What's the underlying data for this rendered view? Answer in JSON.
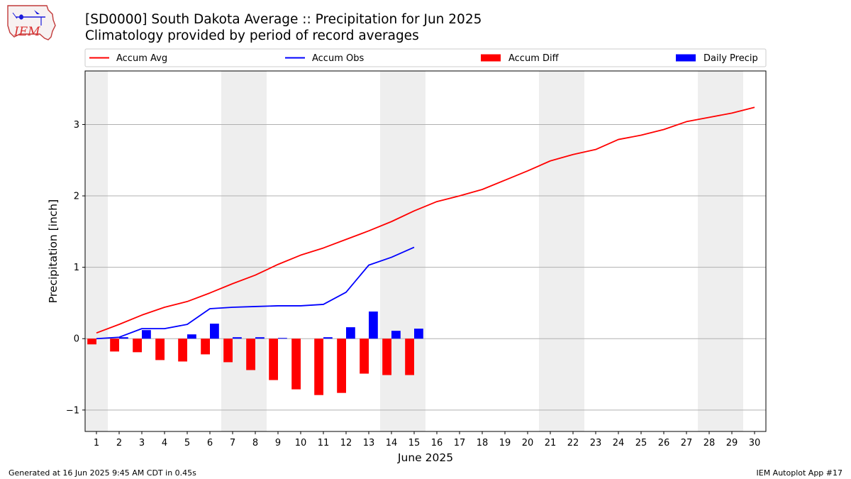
{
  "header": {
    "title_line1": "[SD0000] South Dakota Average :: Precipitation for Jun 2025",
    "title_line2": "Climatology provided by period of record averages",
    "logo_text": "IEM"
  },
  "footer": {
    "generated": "Generated at 16 Jun 2025 9:45 AM CDT in 0.45s",
    "app": "IEM Autoplot App #17"
  },
  "colors": {
    "accum_avg": "#ff0000",
    "accum_obs": "#0000ff",
    "accum_diff": "#ff0000",
    "daily_precip": "#0000ff",
    "weekend_shade": "#eeeeee",
    "grid": "#b0b0b0"
  },
  "chart_data": {
    "type": "bar",
    "xlabel": "June 2025",
    "ylabel": "Precipitation [inch]",
    "xlim": [
      0.5,
      30.5
    ],
    "ylim": [
      -1.3,
      3.75
    ],
    "y_ticks": [
      -1,
      0,
      1,
      2,
      3
    ],
    "y_tick_labels": [
      "−1",
      "0",
      "1",
      "2",
      "3"
    ],
    "x_ticks": [
      1,
      2,
      3,
      4,
      5,
      6,
      7,
      8,
      9,
      10,
      11,
      12,
      13,
      14,
      15,
      16,
      17,
      18,
      19,
      20,
      21,
      22,
      23,
      24,
      25,
      26,
      27,
      28,
      29,
      30
    ],
    "grid": "y",
    "legend_position": "top",
    "weekend_spans": [
      [
        0.5,
        1.5
      ],
      [
        6.5,
        8.5
      ],
      [
        13.5,
        15.5
      ],
      [
        20.5,
        22.5
      ],
      [
        27.5,
        29.5
      ]
    ],
    "series": [
      {
        "name": "Accum Avg",
        "kind": "line",
        "x": [
          1,
          2,
          3,
          4,
          5,
          6,
          7,
          8,
          9,
          10,
          11,
          12,
          13,
          14,
          15,
          16,
          17,
          18,
          19,
          20,
          21,
          22,
          23,
          24,
          25,
          26,
          27,
          28,
          29,
          30
        ],
        "values": [
          0.08,
          0.2,
          0.33,
          0.44,
          0.52,
          0.64,
          0.77,
          0.89,
          1.04,
          1.17,
          1.27,
          1.39,
          1.51,
          1.64,
          1.79,
          1.92,
          2.0,
          2.09,
          2.22,
          2.35,
          2.49,
          2.58,
          2.65,
          2.79,
          2.85,
          2.93,
          3.04,
          3.1,
          3.16,
          3.24
        ]
      },
      {
        "name": "Accum Obs",
        "kind": "line",
        "x": [
          1,
          2,
          3,
          4,
          5,
          6,
          7,
          8,
          9,
          10,
          11,
          12,
          13,
          14,
          15
        ],
        "values": [
          0.0,
          0.02,
          0.14,
          0.14,
          0.2,
          0.42,
          0.44,
          0.45,
          0.46,
          0.46,
          0.48,
          0.65,
          1.03,
          1.14,
          1.28
        ]
      },
      {
        "name": "Accum Diff",
        "kind": "bar",
        "x": [
          1,
          2,
          3,
          4,
          5,
          6,
          7,
          8,
          9,
          10,
          11,
          12,
          13,
          14,
          15
        ],
        "values": [
          -0.08,
          -0.18,
          -0.19,
          -0.3,
          -0.32,
          -0.22,
          -0.33,
          -0.44,
          -0.58,
          -0.71,
          -0.79,
          -0.76,
          -0.49,
          -0.51,
          -0.51
        ]
      },
      {
        "name": "Daily Precip",
        "kind": "bar",
        "x": [
          1,
          2,
          3,
          4,
          5,
          6,
          7,
          8,
          9,
          10,
          11,
          12,
          13,
          14,
          15
        ],
        "values": [
          0.0,
          0.02,
          0.12,
          0.0,
          0.06,
          0.21,
          0.02,
          0.02,
          0.01,
          0.0,
          0.02,
          0.16,
          0.38,
          0.11,
          0.14
        ]
      }
    ]
  }
}
